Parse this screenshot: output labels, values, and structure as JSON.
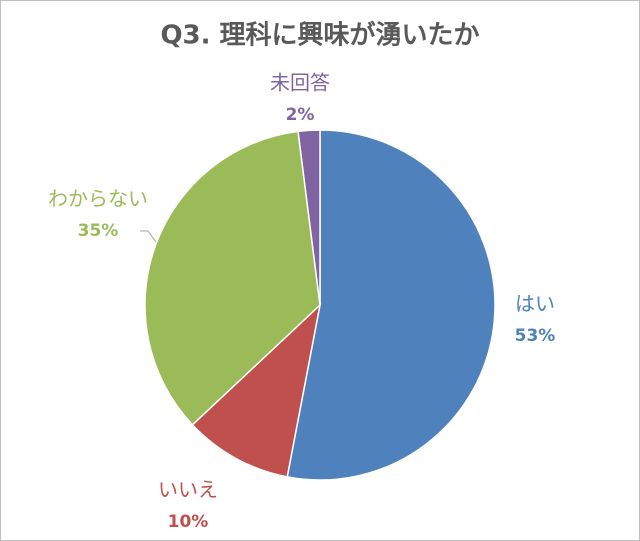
{
  "chart_data": {
    "type": "pie",
    "title": "Q3. 理科に興味が湧いたか",
    "categories": [
      "はい",
      "いいえ",
      "わからない",
      "未回答"
    ],
    "values": [
      53,
      10,
      35,
      2
    ],
    "value_labels": [
      "53%",
      "10%",
      "35%",
      "2%"
    ],
    "colors": [
      "#4f81bd",
      "#c0504d",
      "#9bbb59",
      "#8064a2"
    ]
  }
}
